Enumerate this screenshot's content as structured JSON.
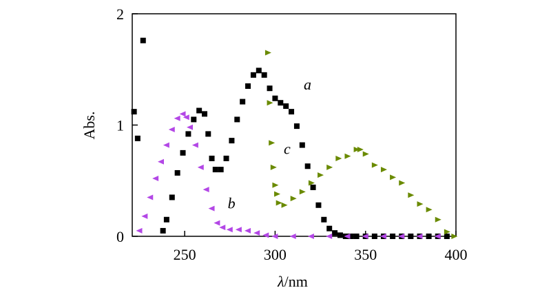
{
  "chart_data": {
    "type": "scatter",
    "title": "",
    "xlabel_symbol": "λ",
    "xlabel_unit": "/nm",
    "ylabel": "Abs.",
    "xlim": [
      221,
      400
    ],
    "ylim": [
      0,
      2
    ],
    "xticks": [
      250,
      300,
      350,
      400
    ],
    "yticks": [
      0,
      1,
      2
    ],
    "grid": false,
    "legend": "none",
    "series": [
      {
        "name": "a",
        "marker": "square",
        "color": "#000000",
        "x": [
          222,
          224,
          227,
          238,
          240,
          243,
          246,
          249,
          252,
          255,
          258,
          261,
          263,
          265,
          267,
          270,
          273,
          276,
          279,
          282,
          285,
          288,
          291,
          294,
          297,
          300,
          303,
          306,
          309,
          312,
          315,
          318,
          321,
          324,
          327,
          330,
          333,
          336,
          339,
          342,
          345,
          350,
          355,
          360,
          365,
          370,
          375,
          380,
          385,
          390,
          395
        ],
        "y": [
          1.12,
          0.88,
          1.76,
          0.05,
          0.15,
          0.35,
          0.57,
          0.75,
          0.92,
          1.05,
          1.13,
          1.1,
          0.92,
          0.7,
          0.6,
          0.6,
          0.7,
          0.86,
          1.05,
          1.21,
          1.35,
          1.45,
          1.49,
          1.45,
          1.33,
          1.24,
          1.2,
          1.17,
          1.12,
          0.99,
          0.82,
          0.63,
          0.44,
          0.28,
          0.15,
          0.07,
          0.03,
          0.01,
          0.0,
          0.0,
          0.0,
          0.0,
          0.0,
          0.0,
          0.0,
          0.0,
          0.0,
          0.0,
          0.0,
          0.0,
          0.0
        ]
      },
      {
        "name": "b",
        "marker": "triangle-left",
        "color": "#b347e6",
        "x": [
          225,
          228,
          231,
          234,
          237,
          240,
          243,
          246,
          249,
          251,
          253,
          256,
          259,
          262,
          265,
          268,
          271,
          275,
          280,
          285,
          290,
          295,
          300,
          310,
          320,
          330,
          340,
          350,
          360,
          370,
          380,
          390
        ],
        "y": [
          0.05,
          0.18,
          0.35,
          0.52,
          0.67,
          0.82,
          0.96,
          1.06,
          1.1,
          1.07,
          0.98,
          0.82,
          0.62,
          0.42,
          0.25,
          0.12,
          0.08,
          0.06,
          0.06,
          0.05,
          0.03,
          0.01,
          0.0,
          0.0,
          0.0,
          0.0,
          0.0,
          0.0,
          0.0,
          0.0,
          0.0,
          0.0
        ]
      },
      {
        "name": "c",
        "marker": "triangle-right",
        "color": "#6a8a00",
        "x": [
          296,
          297,
          298,
          299,
          300,
          301,
          302,
          305,
          310,
          315,
          320,
          325,
          330,
          335,
          340,
          345,
          347,
          350,
          355,
          360,
          365,
          370,
          375,
          380,
          385,
          390,
          395,
          399
        ],
        "y": [
          1.65,
          1.2,
          0.84,
          0.62,
          0.46,
          0.38,
          0.3,
          0.28,
          0.34,
          0.4,
          0.48,
          0.55,
          0.62,
          0.7,
          0.72,
          0.78,
          0.78,
          0.74,
          0.64,
          0.6,
          0.53,
          0.48,
          0.37,
          0.29,
          0.24,
          0.15,
          0.04,
          0.0
        ]
      }
    ],
    "annotations": [
      {
        "text": "a",
        "x": 312,
        "y": 1.32
      },
      {
        "text": "b",
        "x": 270,
        "y": 0.25
      },
      {
        "text": "c",
        "x": 301,
        "y": 0.74
      }
    ]
  }
}
